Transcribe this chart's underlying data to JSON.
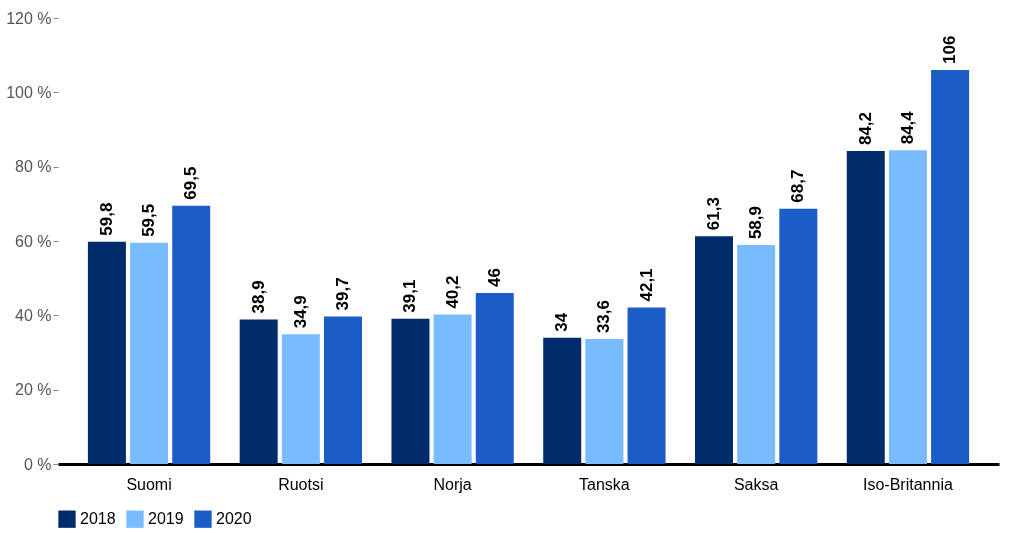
{
  "chart_data": {
    "type": "bar",
    "categories": [
      "Suomi",
      "Ruotsi",
      "Norja",
      "Tanska",
      "Saksa",
      "Iso-Britannia"
    ],
    "series": [
      {
        "name": "2018",
        "color": "#002c6b",
        "values": [
          59.8,
          38.9,
          39.1,
          34,
          61.3,
          84.2
        ],
        "value_labels": [
          "59,8",
          "38,9",
          "39,1",
          "34",
          "61,3",
          "84,2"
        ]
      },
      {
        "name": "2019",
        "color": "#78bbff",
        "values": [
          59.5,
          34.9,
          40.2,
          33.6,
          58.9,
          84.4
        ],
        "value_labels": [
          "59,5",
          "34,9",
          "40,2",
          "33,6",
          "58,9",
          "84,4"
        ]
      },
      {
        "name": "2020",
        "color": "#1b5cc6",
        "values": [
          69.5,
          39.7,
          46,
          42.1,
          68.7,
          106
        ],
        "value_labels": [
          "69,5",
          "39,7",
          "46",
          "42,1",
          "68,7",
          "106"
        ]
      }
    ],
    "ylim": [
      0,
      120
    ],
    "yticks": [
      {
        "value": 0,
        "label": "0 %"
      },
      {
        "value": 20,
        "label": "20 %"
      },
      {
        "value": 40,
        "label": "40 %"
      },
      {
        "value": 60,
        "label": "60 %"
      },
      {
        "value": 80,
        "label": "80 %"
      },
      {
        "value": 100,
        "label": "100 %"
      },
      {
        "value": 120,
        "label": "120 %"
      }
    ],
    "grid": false,
    "legend": "bottom"
  }
}
